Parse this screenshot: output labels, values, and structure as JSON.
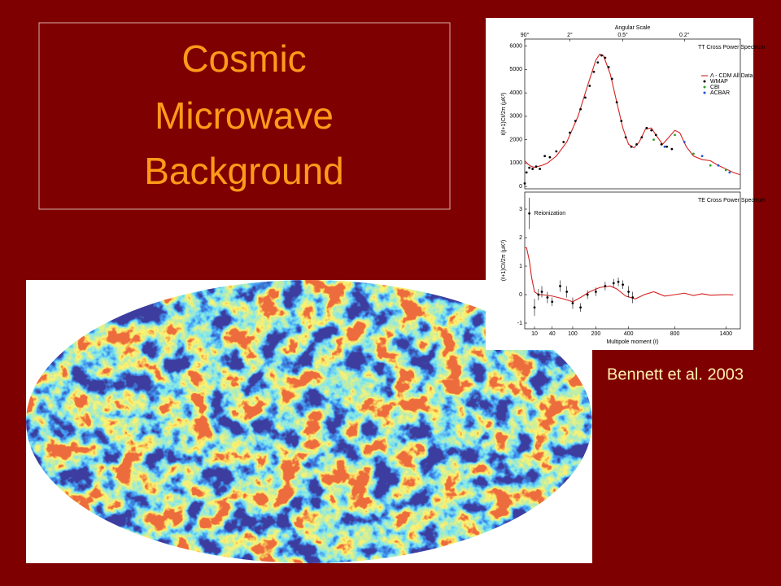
{
  "slide": {
    "title_lines": [
      "Cosmic",
      "Microwave",
      "Background"
    ],
    "citation": "Bennett et al. 2003"
  },
  "chart_data": [
    {
      "type": "line",
      "annotation": "TT Cross Power Spectrum",
      "top_axis_label": "Angular Scale",
      "top_ticks": [
        {
          "value": 2,
          "label": "90°"
        },
        {
          "value": 90,
          "label": "2°"
        },
        {
          "value": 360,
          "label": "0.5°"
        },
        {
          "value": 900,
          "label": "0.2°"
        }
      ],
      "ylabel": "ℓ(ℓ+1)Cℓ/2π (μK²)",
      "xscale": "sqrt",
      "xlim": [
        2,
        1600
      ],
      "ylim": [
        -100,
        6300
      ],
      "yticks": [
        0,
        1000,
        2000,
        3000,
        4000,
        5000,
        6000
      ],
      "series": [
        {
          "name": "Λ - CDM All Data",
          "color": "#d62020",
          "style": "line",
          "x": [
            2,
            4,
            7,
            10,
            20,
            30,
            50,
            80,
            120,
            160,
            200,
            220,
            240,
            280,
            320,
            360,
            400,
            440,
            480,
            530,
            580,
            620,
            680,
            740,
            800,
            850,
            920,
            1000,
            1100,
            1200,
            1300,
            1400,
            1500,
            1600
          ],
          "values": [
            1100,
            950,
            850,
            820,
            900,
            1000,
            1300,
            1900,
            3000,
            4300,
            5400,
            5650,
            5600,
            4800,
            3600,
            2500,
            1800,
            1650,
            1900,
            2450,
            2500,
            2200,
            1800,
            2100,
            2400,
            2300,
            1700,
            1300,
            1150,
            1100,
            900,
            750,
            600,
            500
          ]
        },
        {
          "name": "WMAP",
          "color": "#000000",
          "style": "points",
          "x": [
            2,
            3,
            5,
            8,
            12,
            17,
            25,
            35,
            50,
            70,
            90,
            110,
            130,
            150,
            170,
            190,
            210,
            230,
            250,
            270,
            290,
            320,
            350,
            380,
            420,
            460,
            500,
            540,
            580,
            620,
            670,
            720,
            770
          ],
          "values": [
            130,
            600,
            800,
            750,
            850,
            750,
            1300,
            1250,
            1500,
            1900,
            2300,
            2800,
            3300,
            3800,
            4300,
            4900,
            5300,
            5600,
            5500,
            5100,
            4600,
            3600,
            2800,
            2100,
            1700,
            1800,
            2100,
            2500,
            2400,
            2200,
            1800,
            1700,
            1600
          ]
        },
        {
          "name": "CBI",
          "color": "#2aa02a",
          "style": "points",
          "x": [
            600,
            800,
            1000,
            1200,
            1400
          ],
          "values": [
            2000,
            2200,
            1400,
            900,
            700
          ]
        },
        {
          "name": "ACBAR",
          "color": "#2050d0",
          "style": "points",
          "x": [
            700,
            900,
            1100,
            1300,
            1450
          ],
          "values": [
            1700,
            1900,
            1300,
            900,
            600
          ]
        }
      ]
    },
    {
      "type": "line",
      "annotation": "TE Cross Power Spectrum",
      "note": "Reionization",
      "xlabel": "Multipole moment (ℓ)",
      "ylabel": "(ℓ+1)Cℓ/2π (μK²)",
      "xscale": "sqrt",
      "xlim": [
        2,
        1600
      ],
      "ylim": [
        -1.2,
        3.6
      ],
      "xticks": [
        10,
        40,
        100,
        200,
        400,
        800,
        1400
      ],
      "yticks": [
        -1,
        0,
        1,
        2,
        3
      ],
      "series": [
        {
          "name": "Λ - CDM",
          "color": "#d62020",
          "style": "line",
          "x": [
            2,
            3,
            5,
            7,
            10,
            15,
            20,
            40,
            70,
            100,
            130,
            170,
            220,
            280,
            320,
            380,
            450,
            520,
            600,
            700,
            800,
            900,
            1000,
            1100,
            1200,
            1400,
            1500
          ],
          "values": [
            1.65,
            1.65,
            1.2,
            0.6,
            0.1,
            0,
            0,
            -0.05,
            -0.15,
            -0.25,
            -0.1,
            0.1,
            0.25,
            0.3,
            0.2,
            -0.05,
            -0.15,
            0,
            0.1,
            -0.05,
            0,
            0.05,
            -0.03,
            0.03,
            -0.02,
            0,
            -0.01
          ]
        },
        {
          "name": "WMAP",
          "color": "#000000",
          "style": "points",
          "x": [
            5,
            10,
            15,
            20,
            30,
            40,
            60,
            80,
            100,
            130,
            160,
            200,
            250,
            300,
            330,
            360,
            400,
            430
          ],
          "values": [
            2.85,
            -0.45,
            0.0,
            0.1,
            -0.1,
            -0.25,
            0.3,
            0.1,
            -0.3,
            -0.45,
            0.0,
            0.1,
            0.3,
            0.4,
            0.45,
            0.35,
            0.1,
            -0.1
          ],
          "errors": [
            0.55,
            0.3,
            0.2,
            0.2,
            0.2,
            0.15,
            0.2,
            0.2,
            0.2,
            0.15,
            0.15,
            0.15,
            0.15,
            0.15,
            0.15,
            0.15,
            0.2,
            0.2
          ]
        }
      ]
    }
  ]
}
